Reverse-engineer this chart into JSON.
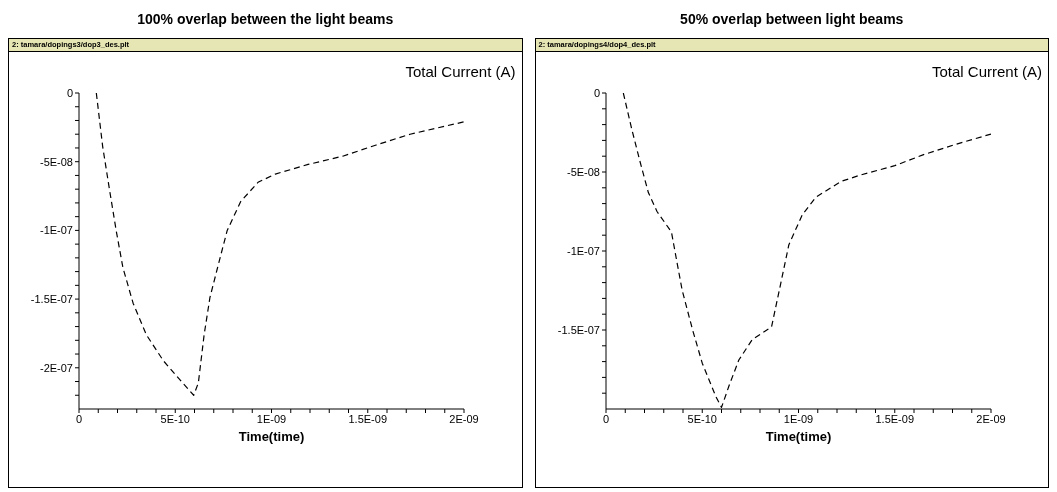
{
  "chart_data": [
    {
      "type": "line",
      "title": "100% overlap between the light beams",
      "subtitle": "2: tamara/dopings3/dop3_des.plt",
      "xlabel": "Time(time)",
      "ylabel": "Total Current (A)",
      "line_style": "dashed",
      "marker": "none",
      "grid": false,
      "legend": false,
      "xlim": [
        0,
        2e-09
      ],
      "ylim": [
        -2.3e-07,
        0
      ],
      "xticks": [
        0,
        {
          "value": 1e-10,
          "label": null
        },
        {
          "value": 2e-10,
          "label": null
        },
        {
          "value": 3e-10,
          "label": null
        },
        {
          "value": 4e-10,
          "label": null
        },
        {
          "value": 5e-10,
          "label": "5E-10"
        },
        {
          "value": 6e-10,
          "label": null
        },
        {
          "value": 7e-10,
          "label": null
        },
        {
          "value": 8e-10,
          "label": null
        },
        {
          "value": 9e-10,
          "label": null
        },
        {
          "value": 1e-09,
          "label": "1E-09"
        },
        {
          "value": 1.1e-09,
          "label": null
        },
        {
          "value": 1.2e-09,
          "label": null
        },
        {
          "value": 1.3e-09,
          "label": null
        },
        {
          "value": 1.4e-09,
          "label": null
        },
        {
          "value": 1.5e-09,
          "label": "1.5E-09"
        },
        {
          "value": 1.6e-09,
          "label": null
        },
        {
          "value": 1.7e-09,
          "label": null
        },
        {
          "value": 1.8e-09,
          "label": null
        },
        {
          "value": 1.9e-09,
          "label": null
        },
        {
          "value": 2e-09,
          "label": "2E-09"
        }
      ],
      "yticks": [
        0,
        {
          "value": -1e-08,
          "label": null
        },
        {
          "value": -2e-08,
          "label": null
        },
        {
          "value": -3e-08,
          "label": null
        },
        {
          "value": -4e-08,
          "label": null
        },
        {
          "value": -5e-08,
          "label": "-5E-08"
        },
        {
          "value": -6e-08,
          "label": null
        },
        {
          "value": -7e-08,
          "label": null
        },
        {
          "value": -8e-08,
          "label": null
        },
        {
          "value": -9e-08,
          "label": null
        },
        {
          "value": -1e-07,
          "label": "-1E-07"
        },
        {
          "value": -1.1e-07,
          "label": null
        },
        {
          "value": -1.2e-07,
          "label": null
        },
        {
          "value": -1.3e-07,
          "label": null
        },
        {
          "value": -1.4e-07,
          "label": null
        },
        {
          "value": -1.5e-07,
          "label": "-1.5E-07"
        },
        {
          "value": -1.6e-07,
          "label": null
        },
        {
          "value": -1.7e-07,
          "label": null
        },
        {
          "value": -1.8e-07,
          "label": null
        },
        {
          "value": -1.9e-07,
          "label": null
        },
        {
          "value": -2e-07,
          "label": "-2E-07"
        },
        {
          "value": -2.1e-07,
          "label": null
        },
        {
          "value": -2.2e-07,
          "label": null
        }
      ],
      "series": [
        {
          "color": "#000000",
          "x": [
            9e-11,
            1.23e-10,
            1.58e-10,
            1.93e-10,
            2.28e-10,
            2.81e-10,
            3.5e-10,
            4.39e-10,
            5.26e-10,
            5.96e-10,
            6.2e-10,
            6.5e-10,
            6.8e-10,
            7.2e-10,
            7.7e-10,
            8.4e-10,
            9.3e-10,
            1.02e-09,
            1.19e-09,
            1.37e-09,
            1.54e-09,
            1.72e-09,
            2e-09
          ],
          "values": [
            0,
            -3.9e-08,
            -7e-08,
            -1e-07,
            -1.27e-07,
            -1.53e-07,
            -1.76e-07,
            -1.95e-07,
            -2.09e-07,
            -2.2e-07,
            -2.11e-07,
            -1.76e-07,
            -1.49e-07,
            -1.27e-07,
            -1e-07,
            -7.9e-08,
            -6.5e-08,
            -5.9e-08,
            -5.2e-08,
            -4.6e-08,
            -3.8e-08,
            -3e-08,
            -2.1e-08
          ]
        }
      ]
    },
    {
      "type": "line",
      "title": "50% overlap between light beams",
      "subtitle": "2: tamara/dopings4/dop4_des.plt",
      "xlabel": "Time(time)",
      "ylabel": "Total Current (A)",
      "line_style": "dashed",
      "marker": "none",
      "grid": false,
      "legend": false,
      "xlim": [
        0,
        2e-09
      ],
      "ylim": [
        -2e-07,
        0
      ],
      "xticks": [
        0,
        {
          "value": 1e-10,
          "label": null
        },
        {
          "value": 2e-10,
          "label": null
        },
        {
          "value": 3e-10,
          "label": null
        },
        {
          "value": 4e-10,
          "label": null
        },
        {
          "value": 5e-10,
          "label": "5E-10"
        },
        {
          "value": 6e-10,
          "label": null
        },
        {
          "value": 7e-10,
          "label": null
        },
        {
          "value": 8e-10,
          "label": null
        },
        {
          "value": 9e-10,
          "label": null
        },
        {
          "value": 1e-09,
          "label": "1E-09"
        },
        {
          "value": 1.1e-09,
          "label": null
        },
        {
          "value": 1.2e-09,
          "label": null
        },
        {
          "value": 1.3e-09,
          "label": null
        },
        {
          "value": 1.4e-09,
          "label": null
        },
        {
          "value": 1.5e-09,
          "label": "1.5E-09"
        },
        {
          "value": 1.6e-09,
          "label": null
        },
        {
          "value": 1.7e-09,
          "label": null
        },
        {
          "value": 1.8e-09,
          "label": null
        },
        {
          "value": 1.9e-09,
          "label": null
        },
        {
          "value": 2e-09,
          "label": "2E-09"
        }
      ],
      "yticks": [
        0,
        {
          "value": -1e-08,
          "label": null
        },
        {
          "value": -2e-08,
          "label": null
        },
        {
          "value": -3e-08,
          "label": null
        },
        {
          "value": -4e-08,
          "label": null
        },
        {
          "value": -5e-08,
          "label": "-5E-08"
        },
        {
          "value": -6e-08,
          "label": null
        },
        {
          "value": -7e-08,
          "label": null
        },
        {
          "value": -8e-08,
          "label": null
        },
        {
          "value": -9e-08,
          "label": null
        },
        {
          "value": -1e-07,
          "label": "-1E-07"
        },
        {
          "value": -1.1e-07,
          "label": null
        },
        {
          "value": -1.2e-07,
          "label": null
        },
        {
          "value": -1.3e-07,
          "label": null
        },
        {
          "value": -1.4e-07,
          "label": null
        },
        {
          "value": -1.5e-07,
          "label": "-1.5E-07"
        },
        {
          "value": -1.6e-07,
          "label": null
        },
        {
          "value": -1.7e-07,
          "label": null
        },
        {
          "value": -1.8e-07,
          "label": null
        },
        {
          "value": -1.9e-07,
          "label": null
        }
      ],
      "series": [
        {
          "color": "#000000",
          "x": [
            9e-11,
            1.34e-10,
            1.78e-10,
            2.2e-10,
            2.65e-10,
            3.4e-10,
            3.7e-10,
            3.96e-10,
            4.5e-10,
            5e-10,
            5.7e-10,
            6e-10,
            6.4e-10,
            6.9e-10,
            7.6e-10,
            8.6e-10,
            9e-10,
            9.5e-10,
            1.02e-09,
            1.09e-09,
            1.22e-09,
            1.32e-09,
            1.5e-09,
            1.65e-09,
            1.83e-09,
            2e-09
          ],
          "values": [
            0,
            -2.3e-08,
            -4.4e-08,
            -6.3e-08,
            -7.5e-08,
            -8.8e-08,
            -1.08e-07,
            -1.25e-07,
            -1.5e-07,
            -1.71e-07,
            -1.92e-07,
            -1.99e-07,
            -1.85e-07,
            -1.69e-07,
            -1.56e-07,
            -1.48e-07,
            -1.25e-07,
            -9.6e-08,
            -7.7e-08,
            -6.6e-08,
            -5.6e-08,
            -5.2e-08,
            -4.6e-08,
            -3.9e-08,
            -3.2e-08,
            -2.6e-08
          ]
        }
      ]
    }
  ]
}
